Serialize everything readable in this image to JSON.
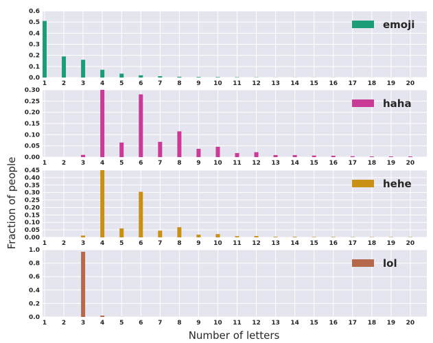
{
  "figure": {
    "xlabel": "Number of letters",
    "ylabel": "Fraction of people"
  },
  "chart_data": [
    {
      "type": "bar",
      "series": [
        {
          "name": "emoji",
          "color": "#1b9e77"
        }
      ],
      "categories": [
        1,
        2,
        3,
        4,
        5,
        6,
        7,
        8,
        9,
        10,
        11,
        12,
        13,
        14,
        15,
        16,
        17,
        18,
        19,
        20
      ],
      "values": [
        0.51,
        0.19,
        0.16,
        0.07,
        0.035,
        0.02,
        0.012,
        0.007,
        0.005,
        0.004,
        0.003,
        0.002,
        0.001,
        0.001,
        0.001,
        0.001,
        0.0005,
        0.0005,
        0.0005,
        0.0005
      ],
      "yticks": [
        0.0,
        0.1,
        0.2,
        0.3,
        0.4,
        0.5,
        0.6
      ],
      "ytick_labels": [
        "0.0",
        "0.1",
        "0.2",
        "0.3",
        "0.4",
        "0.5",
        "0.6"
      ],
      "ylim": [
        0,
        0.6
      ],
      "legend_position": "upper right",
      "grid": true
    },
    {
      "type": "bar",
      "series": [
        {
          "name": "haha",
          "color": "#c93b96"
        }
      ],
      "categories": [
        1,
        2,
        3,
        4,
        5,
        6,
        7,
        8,
        9,
        10,
        11,
        12,
        13,
        14,
        15,
        16,
        17,
        18,
        19,
        20
      ],
      "values": [
        0,
        0,
        0.01,
        0.3,
        0.065,
        0.28,
        0.068,
        0.115,
        0.037,
        0.046,
        0.018,
        0.022,
        0.009,
        0.009,
        0.007,
        0.006,
        0.004,
        0.003,
        0.003,
        0.003
      ],
      "yticks": [
        0.0,
        0.05,
        0.1,
        0.15,
        0.2,
        0.25,
        0.3
      ],
      "ytick_labels": [
        "0.00",
        "0.05",
        "0.10",
        "0.15",
        "0.20",
        "0.25",
        "0.30"
      ],
      "ylim": [
        0,
        0.3
      ],
      "legend_position": "upper right",
      "grid": true
    },
    {
      "type": "bar",
      "series": [
        {
          "name": "hehe",
          "color": "#c99113"
        }
      ],
      "categories": [
        1,
        2,
        3,
        4,
        5,
        6,
        7,
        8,
        9,
        10,
        11,
        12,
        13,
        14,
        15,
        16,
        17,
        18,
        19,
        20
      ],
      "values": [
        0,
        0,
        0.012,
        0.45,
        0.06,
        0.305,
        0.045,
        0.068,
        0.018,
        0.022,
        0.008,
        0.009,
        0.004,
        0.004,
        0.003,
        0.003,
        0.002,
        0.002,
        0.002,
        0.002
      ],
      "yticks": [
        0.0,
        0.05,
        0.1,
        0.15,
        0.2,
        0.25,
        0.3,
        0.35,
        0.4,
        0.45
      ],
      "ytick_labels": [
        "0.00",
        "0.05",
        "0.10",
        "0.15",
        "0.20",
        "0.25",
        "0.30",
        "0.35",
        "0.40",
        "0.45"
      ],
      "ylim": [
        0,
        0.45
      ],
      "legend_position": "upper right",
      "grid": true
    },
    {
      "type": "bar",
      "series": [
        {
          "name": "lol",
          "color": "#b5694a"
        }
      ],
      "categories": [
        1,
        2,
        3,
        4,
        5,
        6,
        7,
        8,
        9,
        10,
        11,
        12,
        13,
        14,
        15,
        16,
        17,
        18,
        19,
        20
      ],
      "values": [
        0,
        0,
        0.97,
        0.02,
        0.001,
        0.001,
        0.0005,
        0.0005,
        0.0003,
        0.0003,
        0.0002,
        0.0002,
        0.0001,
        0.0001,
        0.0001,
        0.0001,
        0.0001,
        0.0001,
        0.0001,
        0.0001
      ],
      "yticks": [
        0.0,
        0.2,
        0.4,
        0.6,
        0.8,
        1.0
      ],
      "ytick_labels": [
        "0.0",
        "0.2",
        "0.4",
        "0.6",
        "0.8",
        "1.0"
      ],
      "ylim": [
        0,
        1.0
      ],
      "legend_position": "upper right",
      "grid": true
    }
  ]
}
